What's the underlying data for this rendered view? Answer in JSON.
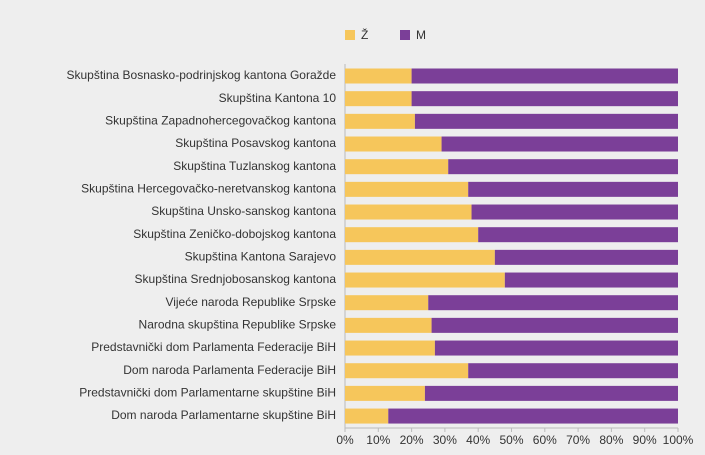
{
  "chart_data": {
    "type": "stacked_barh",
    "categories": [
      "Skupština Bosnasko-podrinjskog kantona Goražde",
      "Skupština Kantona 10",
      "Skupština Zapadnohercegovačkog kantona",
      "Skupština Posavskog kantona",
      "Skupština Tuzlanskog kantona",
      "Skupština Hercegovačko-neretvanskog kantona",
      "Skupština Unsko-sanskog kantona",
      "Skupština Zeničko-dobojskog kantona",
      "Skupština Kantona Sarajevo",
      "Skupština Srednjobosanskog kantona",
      "Vijeće naroda Republike Srpske",
      "Narodna skupština Republike Srpske",
      "Predstavnički dom Parlamenta Federacije BiH",
      "Dom naroda Parlamenta Federacije BiH",
      "Predstavnički dom Parlamentarne skupštine BiH",
      "Dom naroda Parlamentarne skupštine BiH"
    ],
    "series": [
      {
        "name": "Ž",
        "color": "#f6c65b",
        "values": [
          20,
          20,
          21,
          29,
          31,
          37,
          38,
          40,
          45,
          48,
          25,
          26,
          27,
          37,
          24,
          13
        ]
      },
      {
        "name": "M",
        "color": "#7b3f98",
        "values": [
          80,
          80,
          79,
          71,
          69,
          63,
          62,
          60,
          55,
          52,
          75,
          74,
          73,
          63,
          76,
          87
        ]
      }
    ],
    "xlim": [
      0,
      100
    ],
    "xticks": [
      {
        "value": 0,
        "label": "0%"
      },
      {
        "value": 10,
        "label": "10%"
      },
      {
        "value": 20,
        "label": "20%"
      },
      {
        "value": 30,
        "label": "30%"
      },
      {
        "value": 40,
        "label": "40%"
      },
      {
        "value": 50,
        "label": "50%"
      },
      {
        "value": 60,
        "label": "60%"
      },
      {
        "value": 70,
        "label": "70%"
      },
      {
        "value": 80,
        "label": "80%"
      },
      {
        "value": 90,
        "label": "90%"
      },
      {
        "value": 100,
        "label": "100%"
      }
    ],
    "legend": "top"
  }
}
